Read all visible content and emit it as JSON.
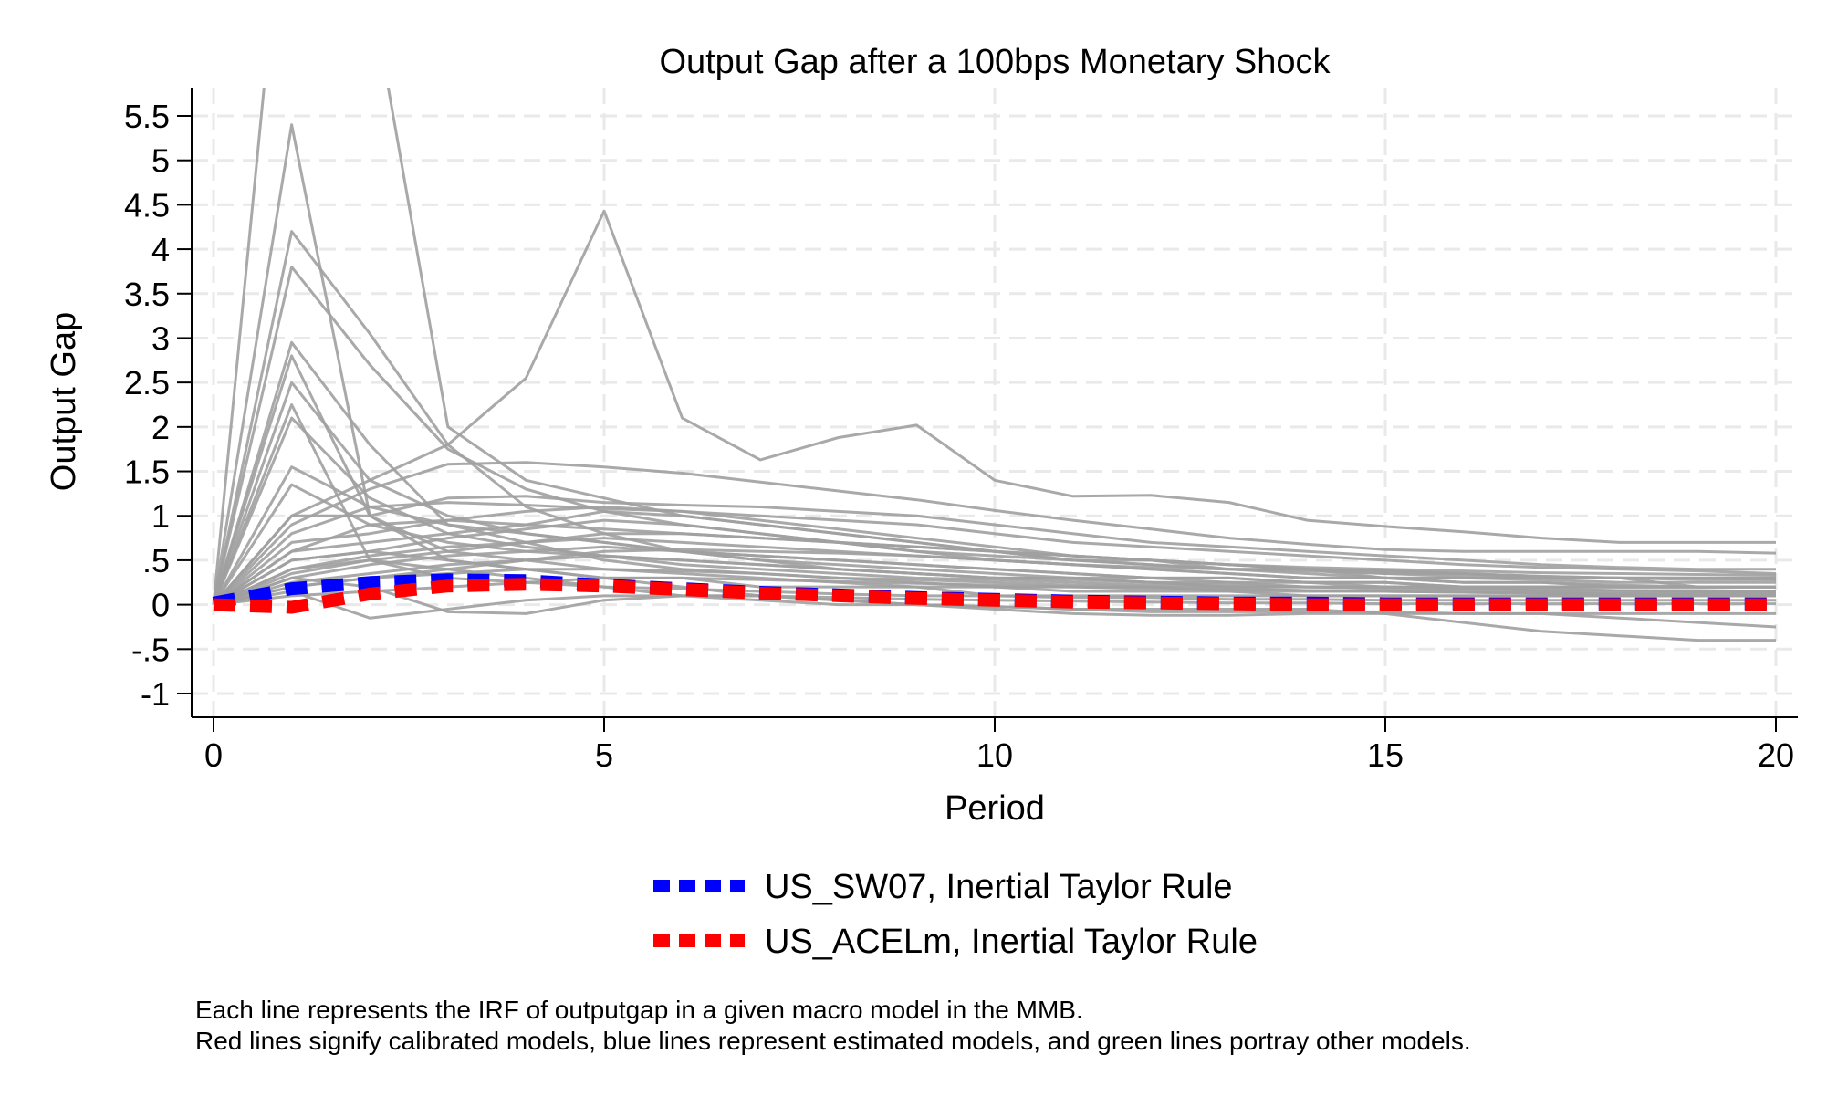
{
  "chart_data": {
    "type": "line",
    "title": "Output Gap after a 100bps Monetary Shock",
    "xlabel": "Period",
    "ylabel": "Output Gap",
    "xlim": [
      0,
      20
    ],
    "ylim": [
      -1,
      5.5
    ],
    "x_ticks": [
      "0",
      "5",
      "10",
      "15",
      "20"
    ],
    "y_ticks": [
      "5.5",
      "5",
      "4.5",
      "4",
      "3.5",
      "3",
      "2.5",
      "2",
      "1.5",
      "1",
      ".5",
      "0",
      "-.5",
      "-1"
    ],
    "grid": true,
    "legend_position": "bottom",
    "x": [
      0,
      1,
      2,
      3,
      4,
      5,
      6,
      7,
      8,
      9,
      10,
      11,
      12,
      13,
      14,
      15,
      16,
      17,
      18,
      19,
      20
    ],
    "highlighted_series": [
      {
        "name": "US_SW07, Inertial Taylor Rule",
        "color": "#0000ff",
        "style": "dashed",
        "values": [
          0.02,
          0.18,
          0.25,
          0.28,
          0.27,
          0.22,
          0.18,
          0.14,
          0.11,
          0.08,
          0.06,
          0.04,
          0.03,
          0.02,
          0.02,
          0.01,
          0.01,
          0.01,
          0.01,
          0.01,
          0.01
        ]
      },
      {
        "name": "US_ACELm, Inertial Taylor Rule",
        "color": "#ff0000",
        "style": "dashed",
        "values": [
          0.0,
          -0.03,
          0.12,
          0.21,
          0.23,
          0.21,
          0.17,
          0.13,
          0.1,
          0.07,
          0.05,
          0.03,
          0.02,
          0.01,
          0.0,
          0.0,
          0.0,
          0.0,
          0.0,
          0.0,
          0.0
        ]
      }
    ],
    "model_series_color": "#a0a0a0",
    "model_series": [
      [
        0,
        9.0,
        7.0,
        2.0,
        1.4,
        1.2,
        1.0,
        0.9,
        0.8,
        0.7,
        0.6,
        0.5,
        0.5,
        0.4,
        0.4,
        0.3,
        0.3,
        0.3,
        0.3,
        0.2,
        0.2
      ],
      [
        0,
        5.4,
        1.0,
        0.5,
        0.4,
        0.3,
        0.3,
        0.2,
        0.2,
        0.2,
        0.1,
        0.1,
        0.1,
        0.1,
        0.1,
        0.1,
        0.1,
        0.1,
        0.1,
        0.1,
        0.1
      ],
      [
        0,
        4.2,
        3.05,
        1.8,
        1.1,
        0.8,
        0.6,
        0.5,
        0.4,
        0.35,
        0.3,
        0.3,
        0.25,
        0.2,
        0.2,
        0.2,
        0.2,
        0.2,
        0.2,
        0.2,
        0.2
      ],
      [
        0,
        3.8,
        2.7,
        1.75,
        1.3,
        1.05,
        0.9,
        0.8,
        0.7,
        0.6,
        0.55,
        0.5,
        0.45,
        0.4,
        0.4,
        0.35,
        0.35,
        0.3,
        0.3,
        0.3,
        0.3
      ],
      [
        0,
        2.95,
        1.8,
        0.9,
        0.7,
        0.5,
        0.4,
        0.35,
        0.3,
        0.25,
        0.2,
        0.2,
        0.2,
        0.15,
        0.15,
        0.15,
        0.15,
        0.15,
        0.15,
        0.15,
        0.15
      ],
      [
        0,
        2.8,
        1.0,
        0.6,
        0.5,
        0.4,
        0.35,
        0.3,
        0.25,
        0.2,
        0.2,
        0.15,
        0.15,
        0.15,
        0.1,
        0.1,
        0.1,
        0.1,
        0.1,
        0.1,
        0.1
      ],
      [
        0,
        2.5,
        1.4,
        1.0,
        0.8,
        0.7,
        0.6,
        0.5,
        0.45,
        0.4,
        0.35,
        0.3,
        0.3,
        0.25,
        0.25,
        0.2,
        0.2,
        0.2,
        0.2,
        0.2,
        0.2
      ],
      [
        0,
        2.25,
        0.5,
        0.3,
        0.25,
        0.2,
        0.18,
        0.15,
        0.12,
        0.1,
        0.1,
        0.08,
        0.08,
        0.06,
        0.06,
        0.05,
        0.05,
        0.05,
        0.05,
        0.05,
        0.05
      ],
      [
        0,
        2.1,
        1.2,
        0.8,
        0.65,
        0.55,
        0.45,
        0.4,
        0.35,
        0.3,
        0.28,
        0.25,
        0.22,
        0.2,
        0.2,
        0.18,
        0.18,
        0.16,
        0.16,
        0.15,
        0.15
      ],
      [
        0,
        1.55,
        1.1,
        0.9,
        0.8,
        0.7,
        0.6,
        0.55,
        0.5,
        0.45,
        0.4,
        0.35,
        0.3,
        0.3,
        0.25,
        0.25,
        0.2,
        0.2,
        0.2,
        0.2,
        0.2
      ],
      [
        0,
        1.35,
        0.9,
        0.7,
        0.6,
        0.55,
        0.5,
        0.45,
        0.4,
        0.35,
        0.3,
        0.3,
        0.25,
        0.25,
        0.2,
        0.2,
        0.2,
        0.2,
        0.2,
        0.2,
        0.2
      ],
      [
        0,
        1.0,
        1.4,
        1.8,
        2.55,
        4.43,
        2.1,
        1.63,
        1.88,
        2.02,
        1.4,
        1.22,
        1.23,
        1.15,
        0.95,
        0.88,
        0.82,
        0.75,
        0.7,
        0.7,
        0.7
      ],
      [
        0,
        0.9,
        1.3,
        1.58,
        1.6,
        1.55,
        1.48,
        1.38,
        1.28,
        1.18,
        1.06,
        0.95,
        0.85,
        0.75,
        0.68,
        0.62,
        0.6,
        0.6,
        0.6,
        0.6,
        0.58
      ],
      [
        0,
        1.0,
        1.0,
        1.2,
        1.22,
        1.15,
        1.12,
        1.1,
        1.05,
        1.0,
        0.9,
        0.8,
        0.7,
        0.65,
        0.6,
        0.55,
        0.5,
        0.45,
        0.42,
        0.4,
        0.4
      ],
      [
        0,
        0.8,
        1.1,
        1.15,
        1.12,
        1.08,
        1.05,
        1.0,
        0.95,
        0.9,
        0.8,
        0.7,
        0.65,
        0.6,
        0.55,
        0.5,
        0.45,
        0.42,
        0.4,
        0.38,
        0.35
      ],
      [
        0,
        0.7,
        0.8,
        0.95,
        1.05,
        1.1,
        1.05,
        0.95,
        0.85,
        0.75,
        0.65,
        0.55,
        0.5,
        0.45,
        0.4,
        0.38,
        0.35,
        0.32,
        0.3,
        0.3,
        0.3
      ],
      [
        0,
        0.6,
        0.7,
        0.8,
        0.9,
        1.05,
        1.0,
        0.9,
        0.8,
        0.7,
        0.6,
        0.5,
        0.45,
        0.4,
        0.35,
        0.3,
        0.3,
        0.28,
        0.25,
        0.25,
        0.25
      ],
      [
        0,
        0.5,
        0.6,
        0.75,
        0.85,
        0.95,
        0.9,
        0.8,
        0.7,
        0.6,
        0.5,
        0.45,
        0.4,
        0.35,
        0.3,
        0.3,
        0.25,
        0.25,
        0.22,
        0.2,
        0.2
      ],
      [
        0,
        0.4,
        0.55,
        0.65,
        0.7,
        0.75,
        0.7,
        0.65,
        0.6,
        0.55,
        0.5,
        0.45,
        0.4,
        0.35,
        0.3,
        0.3,
        0.25,
        0.25,
        0.2,
        0.2,
        0.2
      ],
      [
        0,
        0.3,
        0.45,
        0.55,
        0.6,
        0.65,
        0.6,
        0.55,
        0.5,
        0.45,
        0.4,
        0.35,
        0.3,
        0.3,
        0.25,
        0.25,
        0.2,
        0.2,
        0.2,
        0.2,
        0.2
      ],
      [
        0,
        0.25,
        0.35,
        0.45,
        0.5,
        0.55,
        0.5,
        0.45,
        0.4,
        0.35,
        0.3,
        0.28,
        0.25,
        0.22,
        0.2,
        0.2,
        0.18,
        0.18,
        0.16,
        0.16,
        0.15
      ],
      [
        0,
        0.2,
        0.3,
        0.35,
        0.4,
        0.4,
        0.38,
        0.35,
        0.3,
        0.28,
        0.25,
        0.22,
        0.2,
        0.18,
        0.16,
        0.15,
        0.14,
        0.13,
        0.12,
        0.12,
        0.12
      ],
      [
        0,
        0.15,
        -0.15,
        -0.05,
        0.05,
        0.1,
        0.1,
        0.1,
        0.08,
        0.06,
        0.05,
        0.04,
        0.03,
        0.02,
        0.02,
        0.01,
        0.01,
        0.01,
        0.01,
        0.01,
        0.01
      ],
      [
        0,
        0.3,
        0.2,
        -0.08,
        -0.1,
        0.05,
        0.1,
        0.1,
        0.05,
        0.0,
        -0.05,
        -0.1,
        -0.12,
        -0.12,
        -0.1,
        -0.1,
        -0.1,
        -0.1,
        -0.1,
        -0.1,
        -0.1
      ],
      [
        0,
        0.5,
        0.6,
        0.5,
        0.4,
        0.3,
        0.2,
        0.1,
        0.05,
        0.0,
        -0.02,
        -0.05,
        -0.05,
        -0.05,
        -0.05,
        -0.1,
        -0.2,
        -0.3,
        -0.35,
        -0.4,
        -0.4
      ],
      [
        0,
        0.4,
        0.5,
        0.4,
        0.3,
        0.2,
        0.1,
        0.05,
        0.0,
        0.0,
        -0.02,
        -0.05,
        -0.08,
        -0.08,
        -0.08,
        -0.08,
        -0.1,
        -0.1,
        -0.15,
        -0.2,
        -0.25
      ],
      [
        0,
        0.6,
        0.9,
        0.95,
        0.9,
        0.85,
        0.8,
        0.75,
        0.7,
        0.65,
        0.6,
        0.55,
        0.5,
        0.45,
        0.42,
        0.4,
        0.38,
        0.36,
        0.35,
        0.34,
        0.33
      ],
      [
        0,
        0.35,
        0.5,
        0.6,
        0.7,
        0.8,
        0.8,
        0.75,
        0.7,
        0.65,
        0.6,
        0.55,
        0.5,
        0.45,
        0.4,
        0.38,
        0.35,
        0.32,
        0.3,
        0.3,
        0.28
      ],
      [
        0,
        0.2,
        0.3,
        0.4,
        0.5,
        0.6,
        0.62,
        0.6,
        0.58,
        0.55,
        0.5,
        0.45,
        0.42,
        0.4,
        0.38,
        0.35,
        0.32,
        0.3,
        0.3,
        0.28,
        0.28
      ],
      [
        0,
        0.1,
        0.15,
        0.2,
        0.25,
        0.3,
        0.3,
        0.28,
        0.26,
        0.24,
        0.22,
        0.2,
        0.18,
        0.17,
        0.16,
        0.15,
        0.14,
        0.13,
        0.12,
        0.12,
        0.12
      ]
    ]
  },
  "notes": [
    "Each line represents the IRF of outputgap in a given macro model in the MMB.",
    "Red lines signify calibrated models, blue lines represent estimated models, and green lines portray other models."
  ]
}
